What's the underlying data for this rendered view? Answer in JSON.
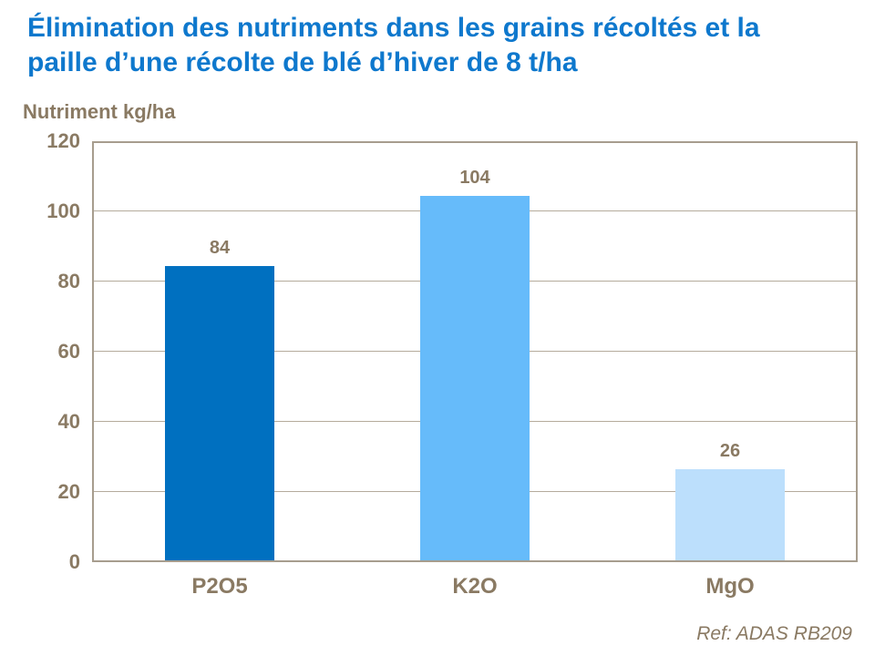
{
  "title": {
    "line1": "Élimination des nutriments dans les grains récoltés et la",
    "line2": "paille d’une récolte de blé d’hiver de 8 t/ha",
    "color": "#0e78cd"
  },
  "ref_note": "Ref: ADAS RB209",
  "colors": {
    "text_brown": "#8a7a63",
    "plot_border": "#a79d8e",
    "gridline": "#b5ab9c"
  },
  "chart_data": {
    "type": "bar",
    "title": "Élimination des nutriments dans les grains récoltés et la paille d’une récolte de blé d’hiver de 8 t/ha",
    "ylabel": "Nutriment kg/ha",
    "xlabel": "",
    "categories": [
      "P2O5",
      "K2O",
      "MgO"
    ],
    "values": [
      84,
      104,
      26
    ],
    "bar_colors": [
      "#0070c0",
      "#66bbfa",
      "#bcdffc"
    ],
    "data_labels": [
      "84",
      "104",
      "26"
    ],
    "ylim": [
      0,
      120
    ],
    "yticks": [
      0,
      20,
      40,
      60,
      80,
      100,
      120
    ],
    "grid": "horizontal",
    "legend": "none"
  }
}
